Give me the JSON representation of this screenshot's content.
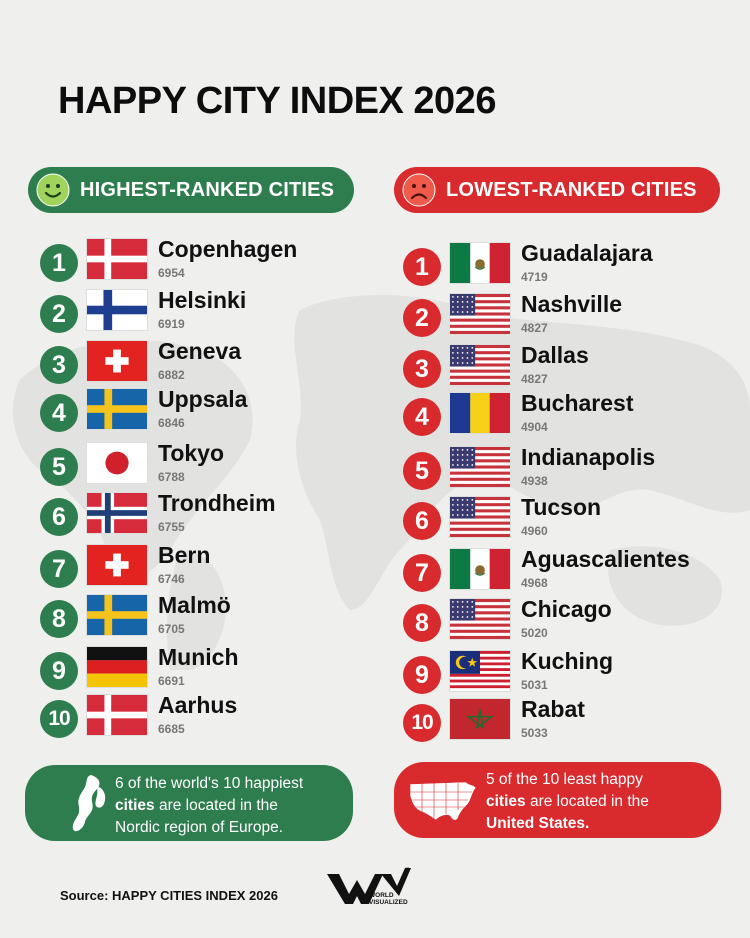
{
  "title": "HAPPY CITY INDEX 2026",
  "colors": {
    "green": "#2e7d4f",
    "red": "#d92a2e",
    "background": "#efefed"
  },
  "highest": {
    "label": "HIGHEST-RANKED CITIES",
    "icon": "smiley-face-icon",
    "rows": [
      {
        "rank": "1",
        "city": "Copenhagen",
        "score": "6954",
        "flag": "denmark"
      },
      {
        "rank": "2",
        "city": "Helsinki",
        "score": "6919",
        "flag": "finland"
      },
      {
        "rank": "3",
        "city": "Geneva",
        "score": "6882",
        "flag": "switzerland"
      },
      {
        "rank": "4",
        "city": "Uppsala",
        "score": "6846",
        "flag": "sweden"
      },
      {
        "rank": "5",
        "city": "Tokyo",
        "score": "6788",
        "flag": "japan"
      },
      {
        "rank": "6",
        "city": "Trondheim",
        "score": "6755",
        "flag": "norway"
      },
      {
        "rank": "7",
        "city": "Bern",
        "score": "6746",
        "flag": "switzerland"
      },
      {
        "rank": "8",
        "city": "Malmö",
        "score": "6705",
        "flag": "sweden"
      },
      {
        "rank": "9",
        "city": "Munich",
        "score": "6691",
        "flag": "germany"
      },
      {
        "rank": "10",
        "city": "Aarhus",
        "score": "6685",
        "flag": "denmark"
      }
    ]
  },
  "lowest": {
    "label": "LOWEST-RANKED CITIES",
    "icon": "sad-face-icon",
    "rows": [
      {
        "rank": "1",
        "city": "Guadalajara",
        "score": "4719",
        "flag": "mexico"
      },
      {
        "rank": "2",
        "city": "Nashville",
        "score": "4827",
        "flag": "usa"
      },
      {
        "rank": "3",
        "city": "Dallas",
        "score": "4827",
        "flag": "usa"
      },
      {
        "rank": "4",
        "city": "Bucharest",
        "score": "4904",
        "flag": "romania"
      },
      {
        "rank": "5",
        "city": "Indianapolis",
        "score": "4938",
        "flag": "usa"
      },
      {
        "rank": "6",
        "city": "Tucson",
        "score": "4960",
        "flag": "usa"
      },
      {
        "rank": "7",
        "city": "Aguascalientes",
        "score": "4968",
        "flag": "mexico"
      },
      {
        "rank": "8",
        "city": "Chicago",
        "score": "5020",
        "flag": "usa"
      },
      {
        "rank": "9",
        "city": "Kuching",
        "score": "5031",
        "flag": "malaysia"
      },
      {
        "rank": "10",
        "city": "Rabat",
        "score": "5033",
        "flag": "morocco"
      }
    ]
  },
  "notes": {
    "green": {
      "icon": "scandinavia-map-icon",
      "pre": "6 of the world's 10 happiest",
      "strong": "cities",
      "mid": " are located in the",
      "end": "Nordic region of Europe."
    },
    "red": {
      "icon": "usa-map-icon",
      "pre": "5 of the 10 least happy",
      "strong": "cities",
      "mid": " are located in the",
      "end": "United States."
    }
  },
  "footer": {
    "source": "Source: HAPPY CITIES INDEX 2026",
    "logo_text_1": "WORLD",
    "logo_text_2": "VISUALIZED"
  }
}
